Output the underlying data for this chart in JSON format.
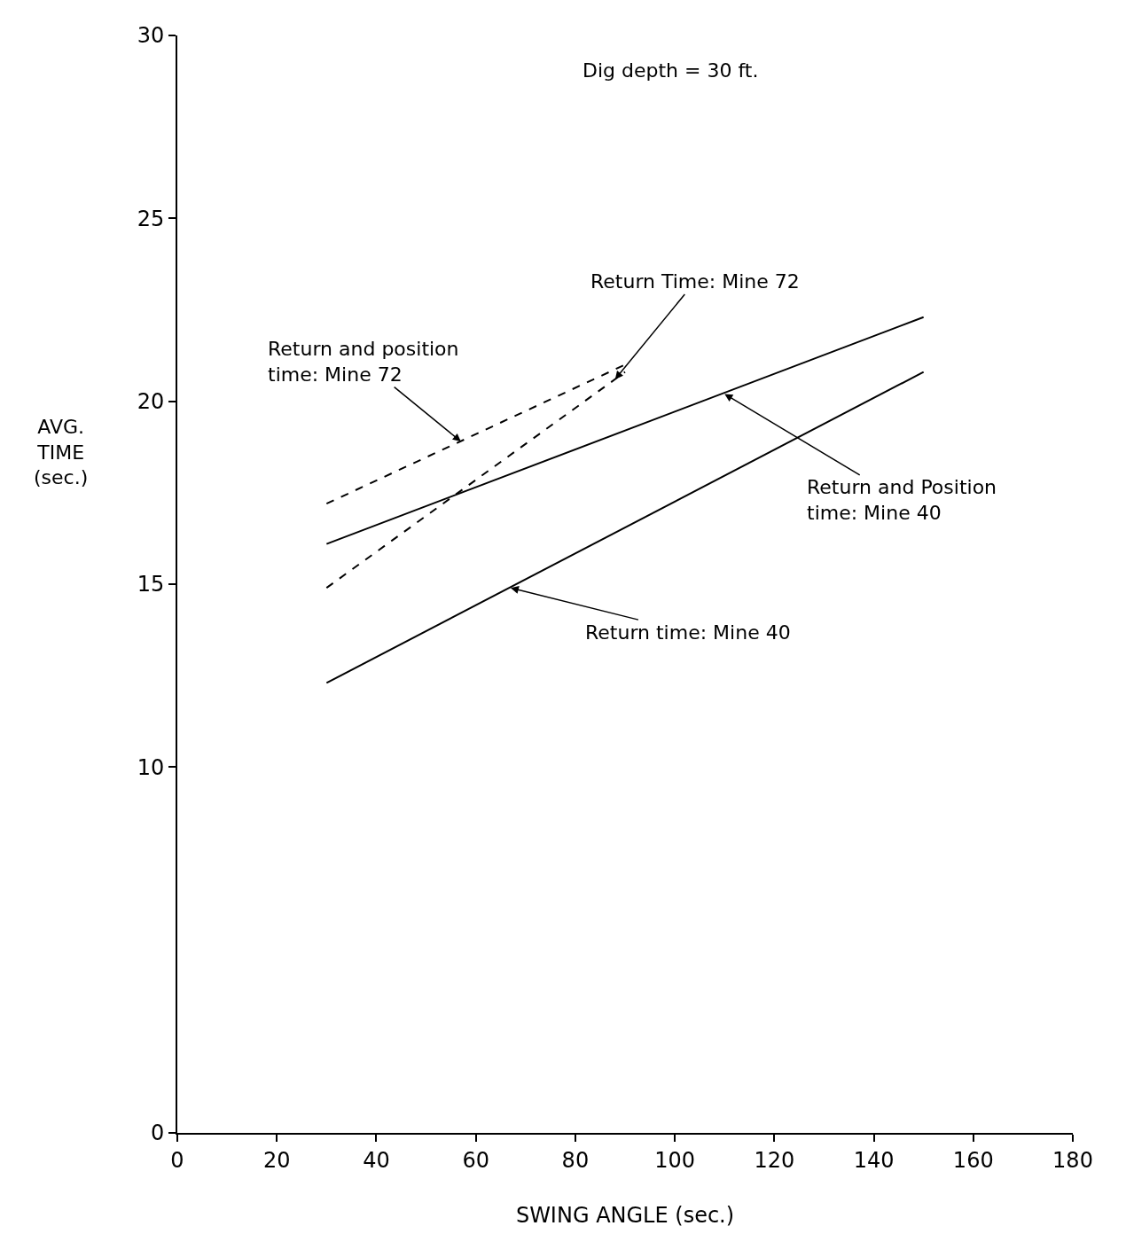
{
  "chart_data": {
    "type": "line",
    "xlabel": "SWING ANGLE (sec.)",
    "ylabel": "AVG.\nTIME\n(sec.)",
    "xlim": [
      0,
      180
    ],
    "xticks": [
      0,
      20,
      40,
      60,
      80,
      100,
      120,
      140,
      160,
      180
    ],
    "ylim": [
      0,
      30
    ],
    "yticks": [
      0,
      10,
      15,
      20,
      25,
      30
    ],
    "marker": "none",
    "series": [
      {
        "color": "#000000",
        "line_style": "solid",
        "x": [
          30,
          150
        ],
        "values": [
          12.3,
          20.8
        ]
      },
      {
        "color": "#000000",
        "line_style": "solid",
        "x": [
          30,
          150
        ],
        "values": [
          16.1,
          22.3
        ]
      },
      {
        "color": "#000000",
        "line_style": "dashed",
        "x": [
          30,
          90
        ],
        "values": [
          17.2,
          21.0
        ]
      },
      {
        "color": "#000000",
        "line_style": "dashed",
        "x": [
          30,
          90
        ],
        "values": [
          14.9,
          20.8
        ]
      }
    ],
    "annotations": [
      "Dig depth = 30 ft.",
      {
        "text": "Return and position\ntime: Mine 72",
        "x": 57,
        "y": 18.9
      },
      {
        "text": "Return Time: Mine 72",
        "x": 88,
        "y": 20.6
      },
      {
        "text": "Return and Position\ntime: Mine 40",
        "x": 110,
        "y": 20.2
      },
      {
        "text": "Return time: Mine 40",
        "x": 67,
        "y": 14.9
      }
    ]
  }
}
